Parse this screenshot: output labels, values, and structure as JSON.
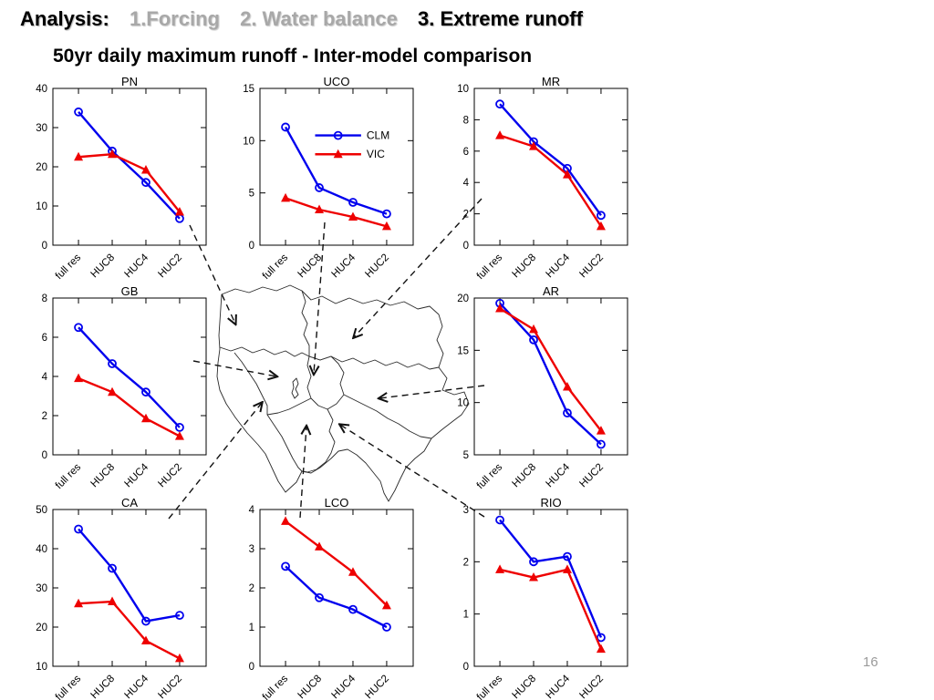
{
  "header": {
    "prefix": "Analysis:",
    "items": [
      {
        "label": "1.Forcing",
        "active": false
      },
      {
        "label": "2. Water balance",
        "active": false
      },
      {
        "label": "3. Extreme runoff",
        "active": true
      }
    ]
  },
  "subtitle": "50yr daily maximum runoff - Inter-model comparison",
  "page_number": "16",
  "colors": {
    "clm_blue": "#0000EE",
    "vic_red": "#EE0000",
    "inactive_header_gray": "#A8A8A8",
    "axis_black": "#000000"
  },
  "legend": {
    "entries": [
      {
        "label": "CLM",
        "marker": "open-circle",
        "color": "#0000EE"
      },
      {
        "label": "VIC",
        "marker": "filled-triangle",
        "color": "#EE0000"
      }
    ],
    "shown_on_panel": "UCO",
    "position": "upper-right"
  },
  "map": {
    "description": "outline map of western US HUC2 river basins with dashed arrows linking each panel to its basin",
    "regions": [
      "PN",
      "MR",
      "GB",
      "UCO",
      "CA",
      "LCO",
      "RIO",
      "AR"
    ]
  },
  "chart_data": {
    "type": "line",
    "categories": [
      "full res",
      "HUC8",
      "HUC4",
      "HUC2"
    ],
    "series_names": [
      "CLM",
      "VIC"
    ],
    "grid": false,
    "panels": [
      {
        "id": "PN",
        "title": "PN",
        "ylim": [
          0,
          40
        ],
        "yticks": [
          0,
          10,
          20,
          30,
          40
        ],
        "legend": false,
        "series": [
          {
            "name": "CLM",
            "values": [
              34,
              24,
              16,
              6.8
            ]
          },
          {
            "name": "VIC",
            "values": [
              22.5,
              23.2,
              19.2,
              8.5
            ]
          }
        ]
      },
      {
        "id": "UCO",
        "title": "UCO",
        "ylim": [
          0,
          15
        ],
        "yticks": [
          0,
          5,
          10,
          15
        ],
        "legend": true,
        "series": [
          {
            "name": "CLM",
            "values": [
              11.3,
              5.5,
              4.1,
              3
            ]
          },
          {
            "name": "VIC",
            "values": [
              4.5,
              3.4,
              2.7,
              1.8
            ]
          }
        ]
      },
      {
        "id": "MR",
        "title": "MR",
        "ylim": [
          0,
          10
        ],
        "yticks": [
          0,
          2,
          4,
          6,
          8,
          10
        ],
        "legend": false,
        "series": [
          {
            "name": "CLM",
            "values": [
              9,
              6.6,
              4.9,
              1.9
            ]
          },
          {
            "name": "VIC",
            "values": [
              7,
              6.3,
              4.5,
              1.2
            ]
          }
        ]
      },
      {
        "id": "GB",
        "title": "GB",
        "ylim": [
          0,
          8
        ],
        "yticks": [
          0,
          2,
          4,
          6,
          8
        ],
        "legend": false,
        "series": [
          {
            "name": "CLM",
            "values": [
              6.5,
              4.65,
              3.2,
              1.4
            ]
          },
          {
            "name": "VIC",
            "values": [
              3.9,
              3.2,
              1.85,
              0.95
            ]
          }
        ]
      },
      {
        "id": "AR",
        "title": "AR",
        "ylim": [
          5,
          20
        ],
        "yticks": [
          5,
          10,
          15,
          20
        ],
        "legend": false,
        "series": [
          {
            "name": "CLM",
            "values": [
              19.5,
              16,
              9,
              6
            ]
          },
          {
            "name": "VIC",
            "values": [
              19,
              17,
              11.5,
              7.3
            ]
          }
        ]
      },
      {
        "id": "CA",
        "title": "CA",
        "ylim": [
          10,
          50
        ],
        "yticks": [
          10,
          20,
          30,
          40,
          50
        ],
        "legend": false,
        "series": [
          {
            "name": "CLM",
            "values": [
              45,
              35,
              21.5,
              23
            ]
          },
          {
            "name": "VIC",
            "values": [
              26,
              26.5,
              16.5,
              12
            ]
          }
        ]
      },
      {
        "id": "LCO",
        "title": "LCO",
        "ylim": [
          0,
          4
        ],
        "yticks": [
          0,
          1,
          2,
          3,
          4
        ],
        "legend": false,
        "series": [
          {
            "name": "CLM",
            "values": [
              2.55,
              1.75,
              1.45,
              1
            ]
          },
          {
            "name": "VIC",
            "values": [
              3.7,
              3.05,
              2.4,
              1.55
            ]
          }
        ]
      },
      {
        "id": "RIO",
        "title": "RIO",
        "ylim": [
          0,
          3
        ],
        "yticks": [
          0,
          1,
          2,
          3
        ],
        "legend": false,
        "series": [
          {
            "name": "CLM",
            "values": [
              2.8,
              2,
              2.1,
              0.55
            ]
          },
          {
            "name": "VIC",
            "values": [
              1.85,
              1.7,
              1.85,
              0.33
            ]
          }
        ]
      }
    ]
  }
}
